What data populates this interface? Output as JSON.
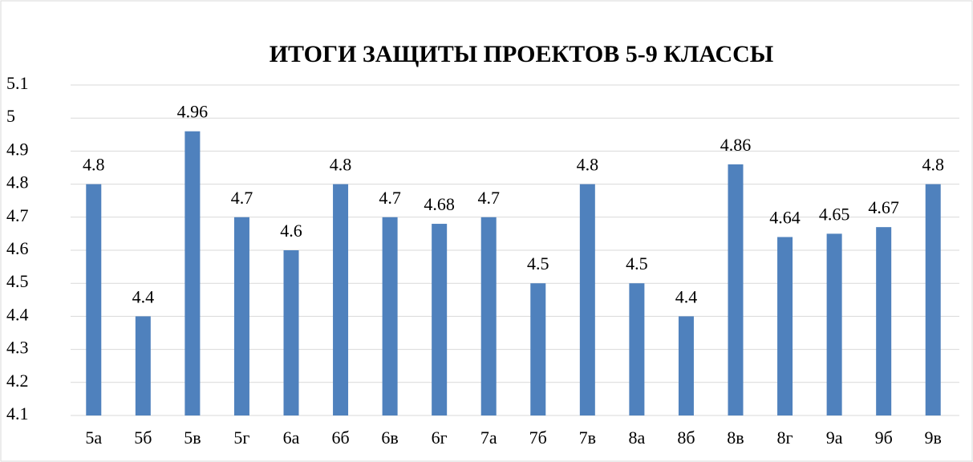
{
  "chart_data": {
    "type": "bar",
    "title": "ИТОГИ ЗАЩИТЫ ПРОЕКТОВ 5-9 КЛАССЫ",
    "categories": [
      "5а",
      "5б",
      "5в",
      "5г",
      "6а",
      "6б",
      "6в",
      "6г",
      "7а",
      "7б",
      "7в",
      "8а",
      "8б",
      "8в",
      "8г",
      "9а",
      "9б",
      "9в"
    ],
    "values": [
      4.8,
      4.4,
      4.96,
      4.7,
      4.6,
      4.8,
      4.7,
      4.68,
      4.7,
      4.5,
      4.8,
      4.5,
      4.4,
      4.86,
      4.64,
      4.65,
      4.67,
      4.8
    ],
    "color": "#4f81bd",
    "ylim": [
      4.1,
      5.1
    ],
    "yticks": [
      4.1,
      4.2,
      4.3,
      4.4,
      4.5,
      4.6,
      4.7,
      4.8,
      4.9,
      5,
      5.1
    ],
    "grid": true
  }
}
